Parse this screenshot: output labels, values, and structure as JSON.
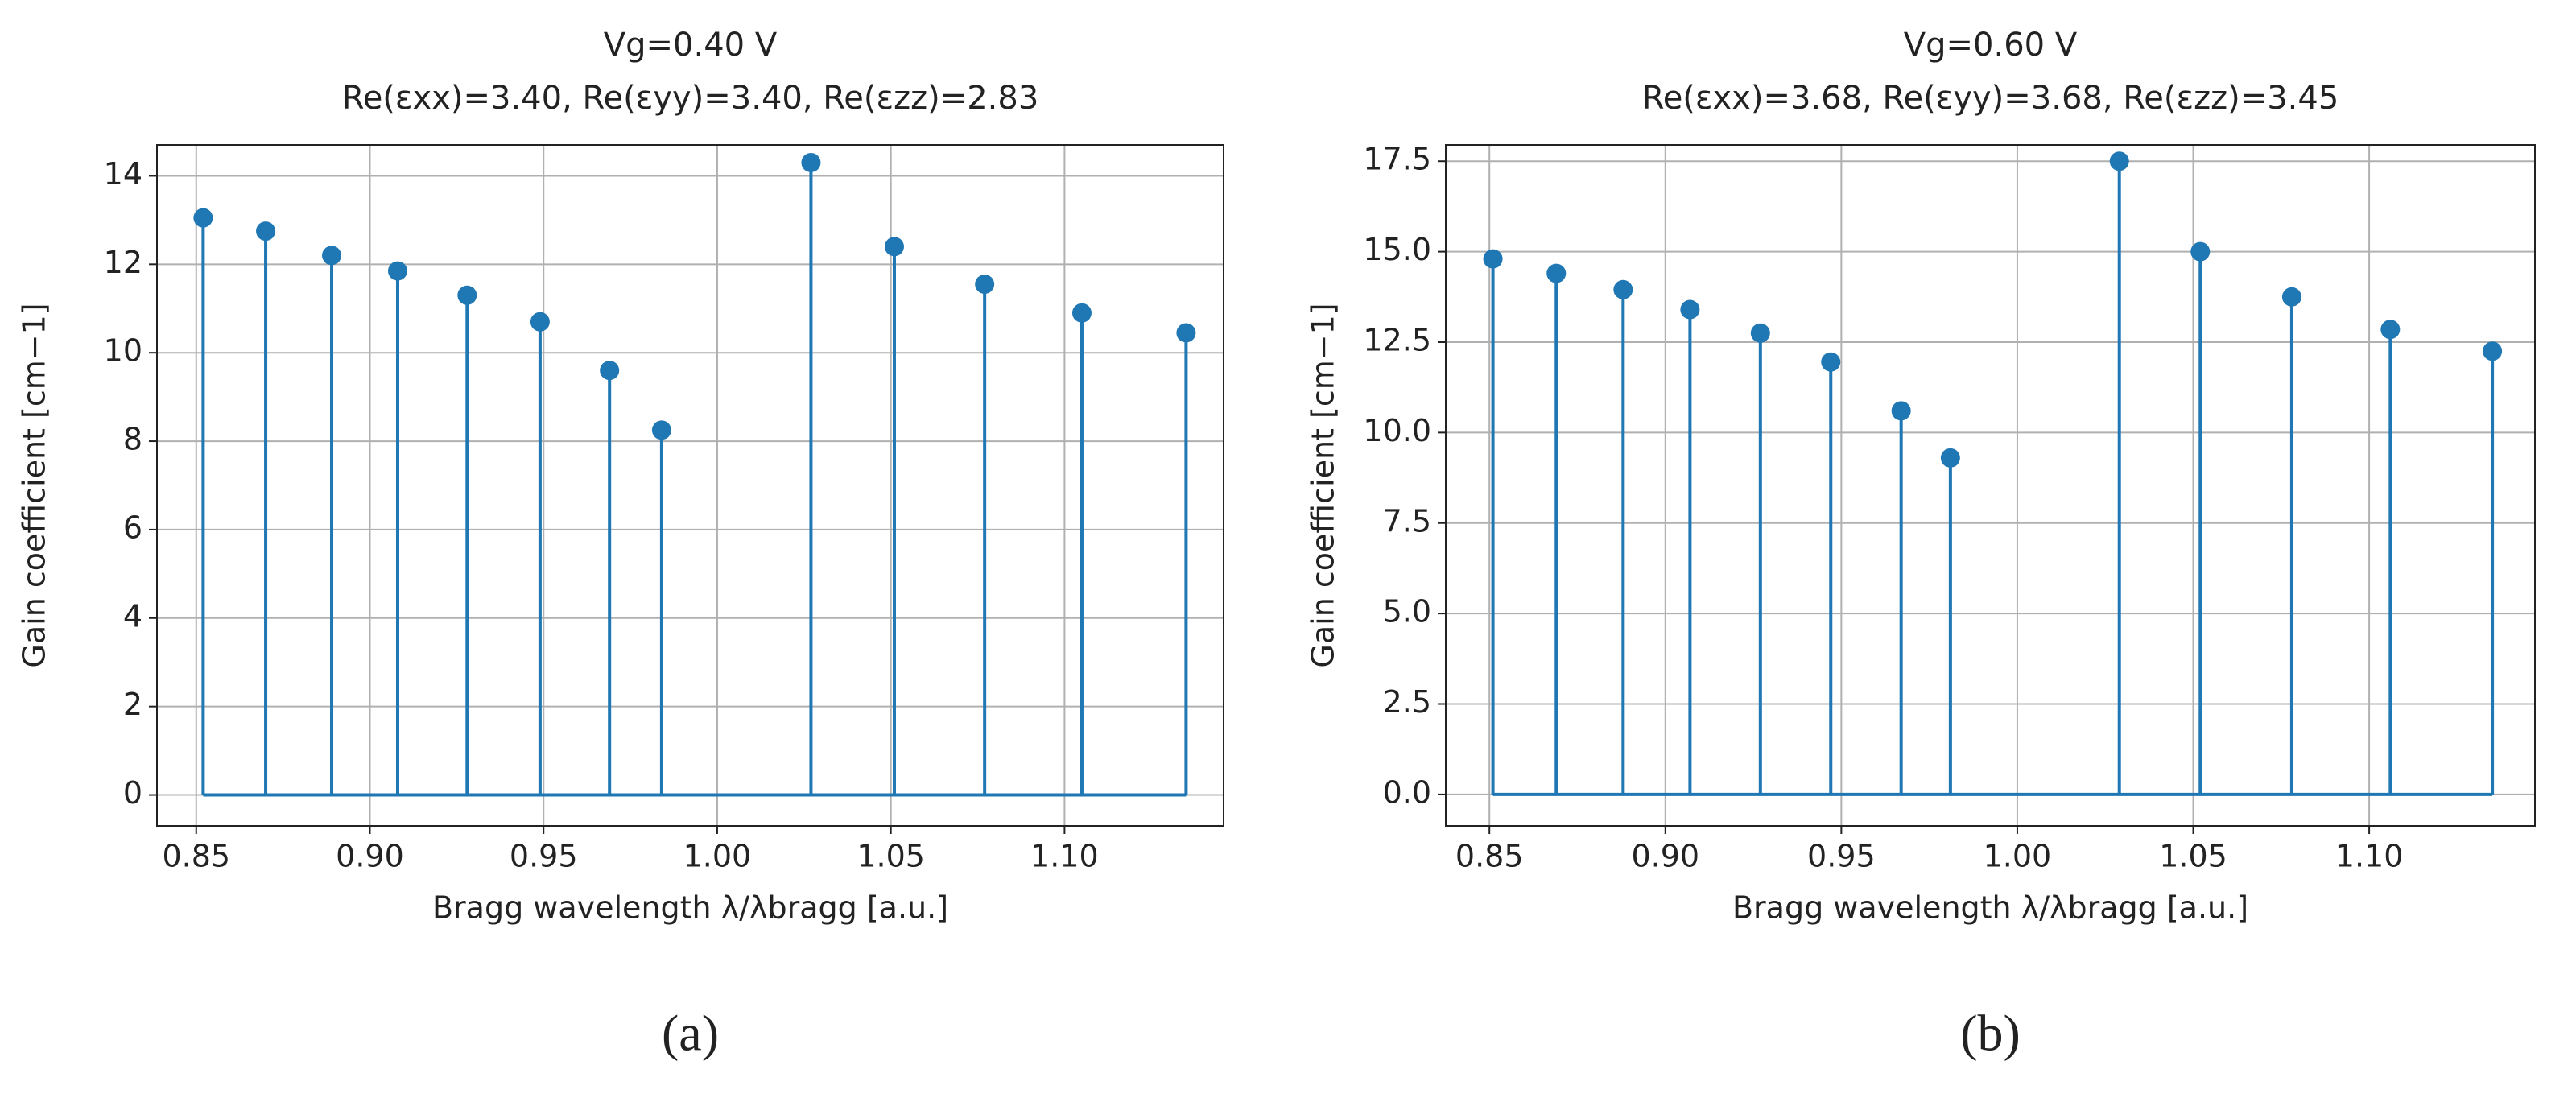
{
  "chart_data": [
    {
      "type": "stem",
      "title": [
        "Vg=0.40 V",
        "Re(εxx)=3.40, Re(εyy)=3.40, Re(εzz)=2.83"
      ],
      "xlabel": "Bragg wavelength λ/λbragg [a.u.]",
      "ylabel": "Gain coefficient [cm−1]",
      "panel": "(a)",
      "x": [
        0.852,
        0.87,
        0.889,
        0.908,
        0.928,
        0.949,
        0.969,
        0.984,
        1.027,
        1.051,
        1.077,
        1.105,
        1.135
      ],
      "values": [
        13.05,
        12.75,
        12.2,
        11.85,
        11.3,
        10.7,
        9.6,
        8.25,
        14.3,
        12.4,
        11.55,
        10.9,
        10.45
      ],
      "color": "#1f77b4",
      "xlim": [
        0.8387,
        1.1458
      ],
      "ylim": [
        -0.7,
        14.7
      ],
      "xticks": [
        0.85,
        {
          "value": 0.9,
          "label": "0.90"
        },
        0.95,
        {
          "value": 1.0,
          "label": "1.00"
        },
        1.05,
        {
          "value": 1.1,
          "label": "1.10"
        }
      ],
      "yticks": [
        0,
        2,
        4,
        6,
        8,
        10,
        12,
        14
      ],
      "grid": true
    },
    {
      "type": "stem",
      "title": [
        "Vg=0.60 V",
        "Re(εxx)=3.68, Re(εyy)=3.68, Re(εzz)=3.45"
      ],
      "xlabel": "Bragg wavelength λ/λbragg [a.u.]",
      "ylabel": "Gain coefficient [cm−1]",
      "panel": "(b)",
      "x": [
        0.851,
        0.869,
        0.888,
        0.907,
        0.927,
        0.947,
        0.967,
        0.981,
        1.029,
        1.052,
        1.078,
        1.106,
        1.135
      ],
      "values": [
        14.8,
        14.4,
        13.95,
        13.4,
        12.75,
        11.95,
        10.6,
        9.3,
        17.5,
        15.0,
        13.75,
        12.85,
        12.25
      ],
      "color": "#1f77b4",
      "xlim": [
        0.8376,
        1.1471
      ],
      "ylim": [
        -0.87,
        17.95
      ],
      "xticks": [
        0.85,
        {
          "value": 0.9,
          "label": "0.90"
        },
        0.95,
        {
          "value": 1.0,
          "label": "1.00"
        },
        1.05,
        {
          "value": 1.1,
          "label": "1.10"
        }
      ],
      "yticks": [
        {
          "value": 0,
          "label": "0.0"
        },
        2.5,
        {
          "value": 5,
          "label": "5.0"
        },
        7.5,
        {
          "value": 10,
          "label": "10.0"
        },
        12.5,
        {
          "value": 15,
          "label": "15.0"
        },
        17.5
      ],
      "grid": true
    }
  ]
}
